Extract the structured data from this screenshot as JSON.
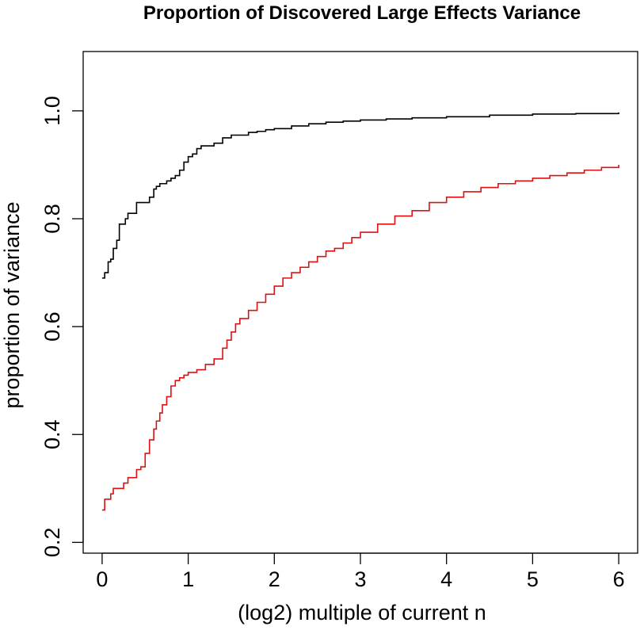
{
  "chart_data": {
    "type": "line",
    "title": "Proportion of Discovered Large Effects Variance",
    "xlabel": "(log2) multiple of current n",
    "ylabel": "proportion of variance",
    "xlim": [
      -0.22,
      6.22
    ],
    "ylim": [
      0.18,
      1.11
    ],
    "xticks": [
      0,
      1,
      2,
      3,
      4,
      5,
      6
    ],
    "yticks": [
      0.2,
      0.4,
      0.6,
      0.8,
      1.0
    ],
    "xtick_labels": [
      "0",
      "1",
      "2",
      "3",
      "4",
      "5",
      "6"
    ],
    "ytick_labels": [
      "0.2",
      "0.4",
      "0.6",
      "0.8",
      "1.0"
    ],
    "grid": false,
    "legend": "none",
    "step": true,
    "series": [
      {
        "color": "#000000",
        "x": [
          0,
          0.03,
          0.07,
          0.1,
          0.13,
          0.17,
          0.2,
          0.23,
          0.27,
          0.3,
          0.35,
          0.4,
          0.45,
          0.5,
          0.55,
          0.6,
          0.63,
          0.67,
          0.7,
          0.75,
          0.8,
          0.85,
          0.9,
          0.95,
          1.0,
          1.05,
          1.1,
          1.15,
          1.2,
          1.3,
          1.4,
          1.5,
          1.6,
          1.7,
          1.8,
          1.9,
          2.0,
          2.2,
          2.4,
          2.6,
          2.8,
          3.0,
          3.3,
          3.6,
          4.0,
          4.5,
          5.0,
          5.5,
          6.0
        ],
        "y": [
          0.69,
          0.7,
          0.72,
          0.725,
          0.745,
          0.76,
          0.79,
          0.79,
          0.8,
          0.81,
          0.81,
          0.83,
          0.83,
          0.83,
          0.84,
          0.855,
          0.86,
          0.865,
          0.865,
          0.87,
          0.875,
          0.88,
          0.89,
          0.905,
          0.915,
          0.92,
          0.93,
          0.935,
          0.935,
          0.94,
          0.95,
          0.955,
          0.955,
          0.96,
          0.962,
          0.965,
          0.967,
          0.972,
          0.976,
          0.979,
          0.981,
          0.983,
          0.985,
          0.987,
          0.989,
          0.992,
          0.994,
          0.995,
          0.997
        ]
      },
      {
        "color": "#dd1111",
        "x": [
          0,
          0.03,
          0.07,
          0.1,
          0.13,
          0.17,
          0.2,
          0.25,
          0.3,
          0.35,
          0.4,
          0.45,
          0.5,
          0.55,
          0.6,
          0.63,
          0.67,
          0.7,
          0.75,
          0.8,
          0.85,
          0.9,
          0.95,
          1.0,
          1.1,
          1.2,
          1.3,
          1.4,
          1.45,
          1.5,
          1.55,
          1.6,
          1.7,
          1.8,
          1.9,
          2.0,
          2.1,
          2.2,
          2.3,
          2.4,
          2.5,
          2.6,
          2.7,
          2.8,
          2.9,
          3.0,
          3.2,
          3.4,
          3.6,
          3.8,
          4.0,
          4.2,
          4.4,
          4.6,
          4.8,
          5.0,
          5.2,
          5.4,
          5.6,
          5.8,
          6.0
        ],
        "y": [
          0.26,
          0.28,
          0.28,
          0.29,
          0.3,
          0.3,
          0.3,
          0.31,
          0.32,
          0.32,
          0.335,
          0.34,
          0.365,
          0.39,
          0.41,
          0.425,
          0.44,
          0.455,
          0.47,
          0.49,
          0.5,
          0.505,
          0.51,
          0.515,
          0.52,
          0.53,
          0.54,
          0.56,
          0.575,
          0.59,
          0.605,
          0.615,
          0.63,
          0.645,
          0.66,
          0.675,
          0.69,
          0.7,
          0.71,
          0.72,
          0.73,
          0.74,
          0.745,
          0.755,
          0.765,
          0.775,
          0.79,
          0.805,
          0.815,
          0.83,
          0.84,
          0.85,
          0.858,
          0.865,
          0.87,
          0.875,
          0.88,
          0.885,
          0.89,
          0.895,
          0.9
        ]
      }
    ]
  }
}
